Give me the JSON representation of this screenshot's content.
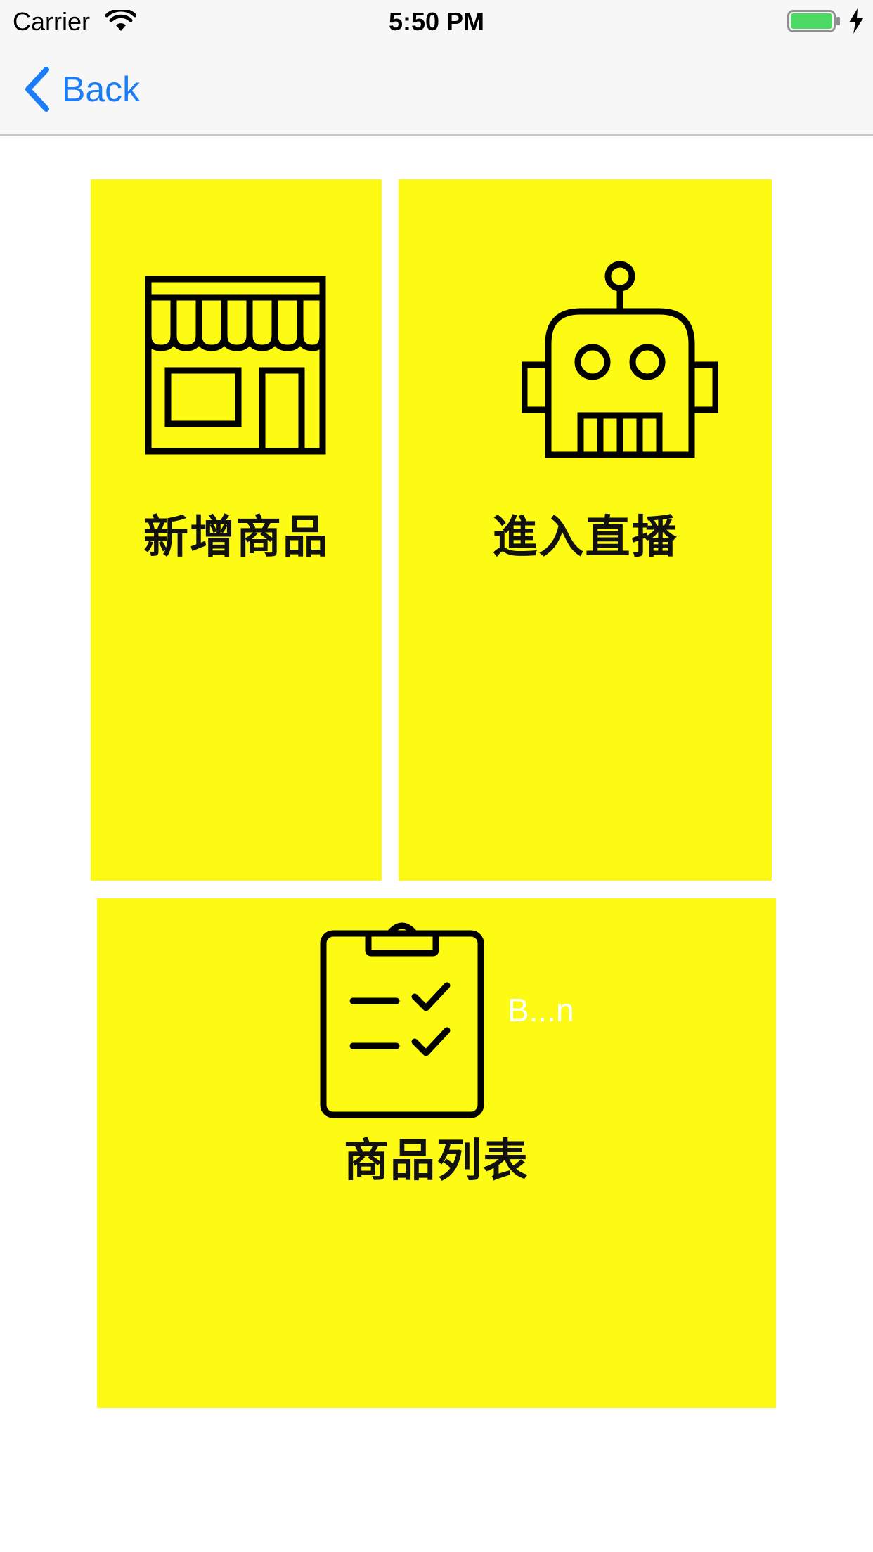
{
  "status_bar": {
    "carrier": "Carrier",
    "time": "5:50 PM"
  },
  "nav": {
    "back_label": "Back"
  },
  "tiles": {
    "add_product": {
      "label": "新增商品",
      "icon": "storefront-icon"
    },
    "enter_live": {
      "label": "進入直播",
      "icon": "robot-icon"
    },
    "product_list": {
      "label": "商品列表",
      "icon": "clipboard-checklist-icon"
    }
  },
  "overflow_button_label": "B...n",
  "colors": {
    "tile_bg": "#fdfa13",
    "accent": "#1a7cf7",
    "bar_bg": "#f7f7f7"
  }
}
